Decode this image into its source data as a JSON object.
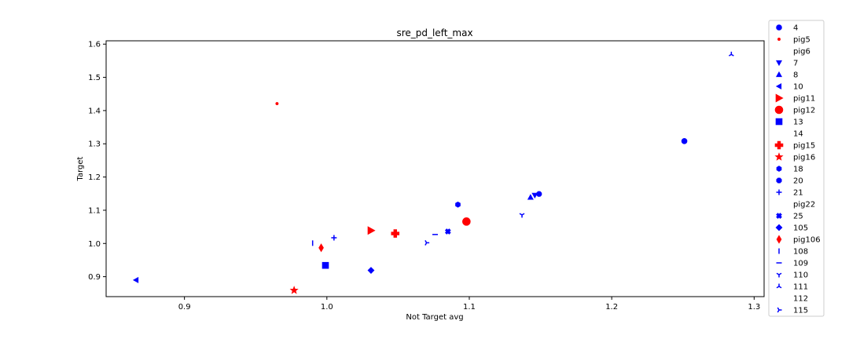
{
  "chart_data": {
    "type": "scatter",
    "title": "sre_pd_left_max",
    "xlabel": "Not Target avg",
    "ylabel": "Target",
    "xlim": [
      0.845,
      1.307
    ],
    "ylim": [
      0.84,
      1.61
    ],
    "xticks": [
      0.9,
      1.0,
      1.1,
      1.2,
      1.3
    ],
    "yticks": [
      0.9,
      1.0,
      1.1,
      1.2,
      1.3,
      1.4,
      1.5,
      1.6
    ],
    "xtick_labels": [
      "0.9",
      "1.0",
      "1.1",
      "1.2",
      "1.3"
    ],
    "ytick_labels": [
      "0.9",
      "1.0",
      "1.1",
      "1.2",
      "1.3",
      "1.4",
      "1.5",
      "1.6"
    ],
    "grid": false,
    "legend_position": "outside-right",
    "colors": {
      "blue": "#0000ff",
      "red": "#ff0000"
    },
    "series": [
      {
        "name": "4",
        "marker": "circle",
        "color": "#0000ff",
        "size": 7,
        "points": [
          [
            1.251,
            1.308
          ]
        ]
      },
      {
        "name": "pig5",
        "marker": "point",
        "color": "#ff0000",
        "size": 6,
        "points": [
          [
            0.965,
            1.421
          ]
        ]
      },
      {
        "name": "pig6",
        "marker": "none",
        "color": "#0000ff",
        "size": 7,
        "points": []
      },
      {
        "name": "7",
        "marker": "triangle-down",
        "color": "#0000ff",
        "size": 7,
        "points": [
          [
            1.146,
            1.145
          ]
        ]
      },
      {
        "name": "8",
        "marker": "triangle-up",
        "color": "#0000ff",
        "size": 7,
        "points": [
          [
            1.143,
            1.139
          ]
        ]
      },
      {
        "name": "10",
        "marker": "triangle-left",
        "color": "#0000ff",
        "size": 7,
        "points": [
          [
            0.866,
            0.89
          ]
        ]
      },
      {
        "name": "pig11",
        "marker": "triangle-right",
        "color": "#ff0000",
        "size": 10,
        "points": [
          [
            1.031,
            1.039
          ]
        ]
      },
      {
        "name": "pig12",
        "marker": "circle",
        "color": "#ff0000",
        "size": 10,
        "points": [
          [
            1.098,
            1.066
          ]
        ]
      },
      {
        "name": "13",
        "marker": "square",
        "color": "#0000ff",
        "size": 8,
        "points": [
          [
            0.999,
            0.934
          ]
        ]
      },
      {
        "name": "14",
        "marker": "none",
        "color": "#0000ff",
        "size": 7,
        "points": []
      },
      {
        "name": "pig15",
        "marker": "plus-filled",
        "color": "#ff0000",
        "size": 10,
        "points": [
          [
            1.048,
            1.03
          ]
        ]
      },
      {
        "name": "pig16",
        "marker": "star",
        "color": "#ff0000",
        "size": 10,
        "points": [
          [
            0.977,
            0.859
          ]
        ]
      },
      {
        "name": "18",
        "marker": "hexagon",
        "color": "#0000ff",
        "size": 7,
        "points": [
          [
            1.092,
            1.117
          ]
        ]
      },
      {
        "name": "20",
        "marker": "octagon",
        "color": "#0000ff",
        "size": 7,
        "points": [
          [
            1.149,
            1.149
          ]
        ]
      },
      {
        "name": "21",
        "marker": "plus",
        "color": "#0000ff",
        "size": 7,
        "points": [
          [
            1.005,
            1.017
          ]
        ]
      },
      {
        "name": "pig22",
        "marker": "none",
        "color": "#0000ff",
        "size": 7,
        "points": []
      },
      {
        "name": "25",
        "marker": "x-filled",
        "color": "#0000ff",
        "size": 7,
        "points": [
          [
            1.085,
            1.036
          ]
        ]
      },
      {
        "name": "105",
        "marker": "diamond",
        "color": "#0000ff",
        "size": 8,
        "points": [
          [
            1.031,
            0.919
          ]
        ]
      },
      {
        "name": "pig106",
        "marker": "thin-diamond",
        "color": "#ff0000",
        "size": 10,
        "points": [
          [
            0.996,
            0.987
          ]
        ]
      },
      {
        "name": "108",
        "marker": "vline",
        "color": "#0000ff",
        "size": 7,
        "points": [
          [
            0.99,
            1.001
          ]
        ]
      },
      {
        "name": "109",
        "marker": "hline",
        "color": "#0000ff",
        "size": 7,
        "points": [
          [
            1.076,
            1.027
          ]
        ]
      },
      {
        "name": "110",
        "marker": "tri-down",
        "color": "#0000ff",
        "size": 7,
        "points": [
          [
            1.137,
            1.086
          ]
        ]
      },
      {
        "name": "111",
        "marker": "tri-up",
        "color": "#0000ff",
        "size": 7,
        "points": [
          [
            1.284,
            1.569
          ]
        ]
      },
      {
        "name": "112",
        "marker": "none",
        "color": "#0000ff",
        "size": 7,
        "points": []
      },
      {
        "name": "115",
        "marker": "tri-right",
        "color": "#0000ff",
        "size": 7,
        "points": [
          [
            1.07,
            1.002
          ]
        ]
      }
    ]
  }
}
